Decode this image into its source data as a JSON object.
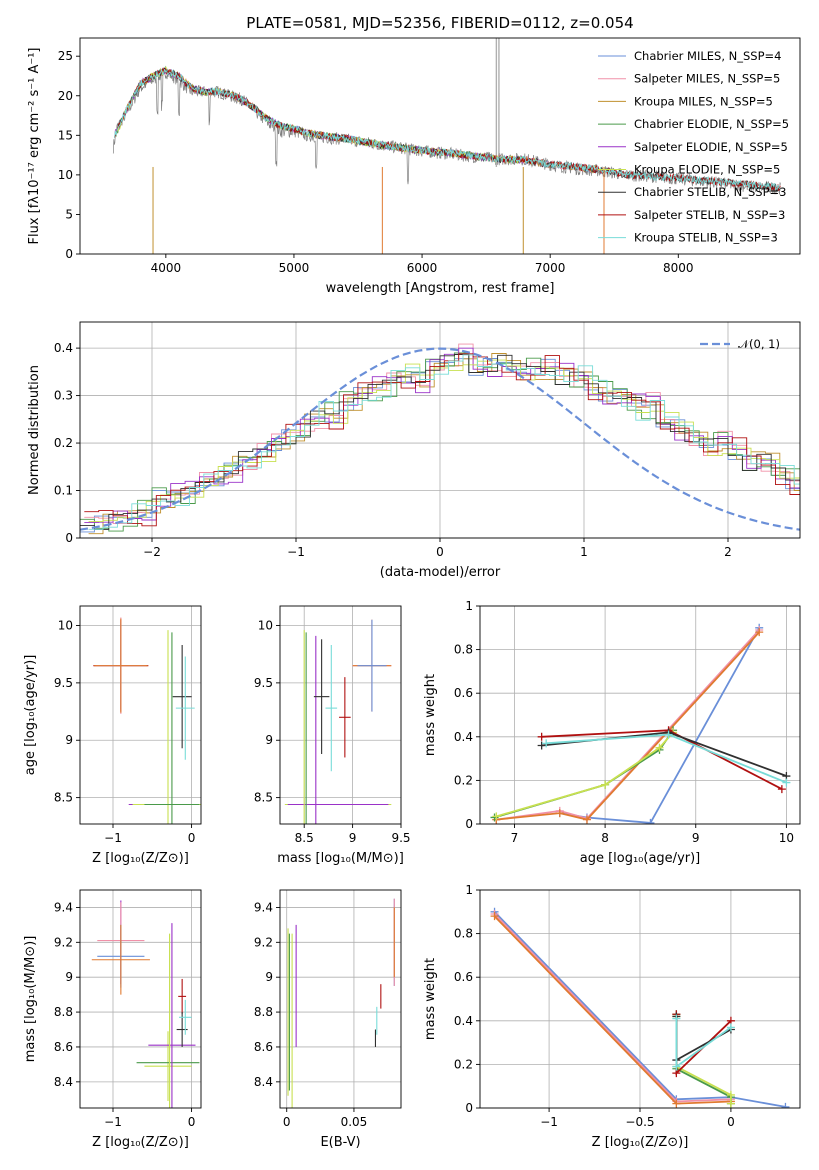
{
  "chart_data": [
    {
      "id": "spectrum",
      "type": "line",
      "title": "PLATE=0581, MJD=52356, FIBERID=0112, z=0.054",
      "xlabel": "wavelength [Angstrom, rest frame]",
      "ylabel": "Flux [fλ10⁻¹⁷ erg cm⁻² s⁻¹ A⁻¹]",
      "xlim": [
        3330,
        8950
      ],
      "ylim": [
        0,
        27.3
      ],
      "xticks": [
        4000,
        5000,
        6000,
        7000,
        8000
      ],
      "yticks": [
        0,
        5,
        10,
        15,
        20,
        25
      ],
      "grid": false,
      "legend_position": "top-right",
      "observed": {
        "color": "#808080",
        "x": [
          3590,
          3620,
          3700,
          3800,
          3900,
          4000,
          4100,
          4200,
          4300,
          4400,
          4500,
          4600,
          4700,
          4800,
          4900,
          5000,
          5100,
          5200,
          5400,
          5600,
          5800,
          6000,
          6200,
          6400,
          6600,
          6800,
          7000,
          7200,
          7400,
          7600,
          7800,
          8000,
          8200,
          8400,
          8600,
          8800
        ],
        "y": [
          13.5,
          16,
          18,
          21,
          22,
          23,
          22,
          20.5,
          20.5,
          20.5,
          20,
          19.5,
          18,
          16.5,
          15.5,
          15.5,
          15,
          14.8,
          14.5,
          14,
          13.5,
          13,
          12.7,
          12.3,
          12,
          12,
          11.3,
          10.8,
          10.5,
          10,
          9.8,
          9.5,
          9.2,
          8.8,
          8.5,
          8.3
        ]
      },
      "model_fit": {
        "x": [
          3590,
          3620,
          3700,
          3800,
          3900,
          4000,
          4100,
          4200,
          4300,
          4400,
          4500,
          4600,
          4700,
          4800,
          4900,
          5000,
          5100,
          5200,
          5400,
          5600,
          5800,
          6000,
          6200,
          6400,
          6600,
          6800,
          7000,
          7200,
          7400
        ],
        "y": [
          15,
          15.5,
          18.5,
          21.5,
          22.5,
          23.2,
          22.5,
          21,
          20.5,
          20.5,
          20.2,
          19.5,
          18.3,
          17,
          16.2,
          15.8,
          15.3,
          15,
          14.6,
          14,
          13.5,
          13.1,
          12.8,
          12.4,
          12,
          11.9,
          11.3,
          11,
          10.6
        ]
      },
      "series": [
        {
          "name": "Chabrier MILES, N_SSP=4",
          "color": "#6a8fd8",
          "xmax": 7400
        },
        {
          "name": "Salpeter MILES, N_SSP=5",
          "color": "#f090a8",
          "xmax": 7400
        },
        {
          "name": "Kroupa MILES, N_SSP=5",
          "color": "#c0902e",
          "xmax": 7400
        },
        {
          "name": "Chabrier ELODIE, N_SSP=5",
          "color": "#4a9a4a",
          "xmax": 6800
        },
        {
          "name": "Salpeter ELODIE, N_SSP=5",
          "color": "#9a32c8",
          "xmax": 6800
        },
        {
          "name": "Kroupa ELODIE, N_SSP=5",
          "color": "#c8e050",
          "xmax": 6800
        },
        {
          "name": "Chabrier STELIB, N_SSP=3",
          "color": "#303030",
          "xmax": 8800
        },
        {
          "name": "Salpeter STELIB, N_SSP=3",
          "color": "#b01010",
          "xmax": 8800
        },
        {
          "name": "Kroupa STELIB, N_SSP=3",
          "color": "#78dcd8",
          "xmax": 8800
        }
      ]
    },
    {
      "id": "residuals",
      "type": "step",
      "xlabel": "(data-model)/error",
      "ylabel": "Normed distribution",
      "xlim": [
        -2.5,
        2.5
      ],
      "ylim": [
        0,
        0.455
      ],
      "xticks": [
        -2,
        -1,
        0,
        1,
        2
      ],
      "yticks": [
        0.0,
        0.1,
        0.2,
        0.3,
        0.4
      ],
      "grid": true,
      "legend_position": "top-right",
      "reference": {
        "name": "𝒩(0, 1)",
        "color": "#6a8fd8",
        "mean": 0,
        "sigma": 1
      },
      "bin_edges_start": -2.5,
      "bin_width": 0.1,
      "histogram_base": [
        0.035,
        0.04,
        0.045,
        0.05,
        0.06,
        0.1,
        0.1,
        0.1,
        0.13,
        0.13,
        0.15,
        0.16,
        0.17,
        0.19,
        0.2,
        0.22,
        0.24,
        0.22,
        0.26,
        0.28,
        0.28,
        0.3,
        0.31,
        0.29,
        0.34,
        0.35,
        0.38,
        0.34,
        0.36,
        0.37,
        0.36,
        0.38,
        0.4,
        0.39,
        0.4,
        0.38,
        0.37,
        0.38,
        0.36,
        0.38,
        0.33,
        0.32,
        0.3,
        0.27,
        0.3,
        0.27,
        0.24,
        0.25,
        0.21,
        0.18,
        0.19,
        0.17,
        0.15,
        0.13,
        0.13,
        0.11,
        0.1,
        0.09,
        0.09,
        0.08,
        0.07,
        0.06,
        0.06,
        0.05,
        0.05,
        0.04,
        0.045,
        0.04,
        0.03,
        0.04,
        0.03,
        0.045,
        0.04,
        0.035,
        0.03,
        0.03,
        0.025,
        0.03,
        0.03,
        0.025,
        0.02,
        0.02,
        0.015,
        0.015,
        0.01
      ],
      "offsets": [
        0.0,
        0.012,
        -0.01,
        0.018,
        -0.015,
        0.008,
        -0.006,
        0.015,
        -0.012
      ]
    },
    {
      "id": "age-vs-Z",
      "type": "errorbar",
      "xlabel": "Z [log₁₀(Z/Z⊙)]",
      "ylabel": "age  [log₁₀(age/yr)]",
      "xlim": [
        -1.42,
        0.12
      ],
      "ylim": [
        8.27,
        10.17
      ],
      "xticks": [
        -1,
        0
      ],
      "yticks": [
        8.5,
        9.0,
        9.5,
        10.0
      ],
      "grid": true,
      "points": [
        {
          "color": "#b01010",
          "x": -0.9,
          "y": 9.65,
          "xerr": 0.35,
          "yerr": 0.4
        },
        {
          "color": "#6a8fd8",
          "x": -0.9,
          "y": 9.65,
          "xerr": 0.3,
          "yerr": 0.38
        },
        {
          "color": "#f090a8",
          "x": -0.9,
          "y": 9.65,
          "xerr": 0.32,
          "yerr": 0.42
        },
        {
          "color": "#e07a30",
          "x": -0.9,
          "y": 9.65,
          "xerr": 0.34,
          "yerr": 0.41
        },
        {
          "color": "#9a32c8",
          "x": -0.3,
          "y": 8.44,
          "xerr": 0.5,
          "yerr": 0.0
        },
        {
          "color": "#c8e050",
          "x": -0.3,
          "y": 8.44,
          "xerr": 0.45,
          "yerr": 1.52
        },
        {
          "color": "#4a9a4a",
          "x": -0.25,
          "y": 8.44,
          "xerr": 0.35,
          "yerr": 1.5
        },
        {
          "color": "#303030",
          "x": -0.12,
          "y": 9.38,
          "xerr": 0.12,
          "yerr": 0.45
        },
        {
          "color": "#78dcd8",
          "x": -0.08,
          "y": 9.28,
          "xerr": 0.12,
          "yerr": 0.45
        }
      ]
    },
    {
      "id": "age-vs-mass",
      "type": "errorbar",
      "xlabel": "mass [log₁₀(M/M⊙)]",
      "ylabel": "",
      "xlim": [
        8.25,
        9.5
      ],
      "ylim": [
        8.27,
        10.17
      ],
      "xticks": [
        8.5,
        9.0,
        9.5
      ],
      "yticks": [
        8.5,
        9.0,
        9.5,
        10.0
      ],
      "grid": true,
      "points": [
        {
          "color": "#c8e050",
          "x": 8.85,
          "y": 8.44,
          "xerr": 0.55,
          "yerr": 0
        },
        {
          "color": "#9a32c8",
          "x": 8.85,
          "y": 8.44,
          "xerr": 0.52,
          "yerr": 0
        },
        {
          "color": "#4a9a4a",
          "x": 8.52,
          "y": 8.44,
          "xerr": 0,
          "yerr": 1.5
        },
        {
          "color": "#c8e050",
          "x": 8.5,
          "y": 8.44,
          "xerr": 0,
          "yerr": 1.52
        },
        {
          "color": "#9a32c8",
          "x": 8.62,
          "y": 8.44,
          "xerr": 0,
          "yerr": 1.47
        },
        {
          "color": "#303030",
          "x": 8.68,
          "y": 9.38,
          "xerr": 0.08,
          "yerr": 0.5
        },
        {
          "color": "#78dcd8",
          "x": 8.78,
          "y": 9.28,
          "xerr": 0.06,
          "yerr": 0.55
        },
        {
          "color": "#b01010",
          "x": 8.92,
          "y": 9.2,
          "xerr": 0.06,
          "yerr": 0.35
        },
        {
          "color": "#f090a8",
          "x": 9.2,
          "y": 9.65,
          "xerr": 0.2,
          "yerr": 0.4
        },
        {
          "color": "#e07a30",
          "x": 9.2,
          "y": 9.65,
          "xerr": 0.2,
          "yerr": 0.4
        },
        {
          "color": "#6a8fd8",
          "x": 9.2,
          "y": 9.65,
          "xerr": 0.15,
          "yerr": 0.4
        }
      ]
    },
    {
      "id": "weight-vs-age",
      "type": "line",
      "xlabel": "age  [log₁₀(age/yr)]",
      "ylabel": "mass weight",
      "xlim": [
        6.62,
        10.15
      ],
      "ylim": [
        0,
        1.0
      ],
      "xticks": [
        7,
        8,
        9,
        10
      ],
      "yticks": [
        0.0,
        0.2,
        0.4,
        0.6,
        0.8,
        1.0
      ],
      "grid": true,
      "series": [
        {
          "color": "#6a8fd8",
          "x": [
            7.5,
            7.8,
            8.5,
            9.7
          ],
          "y": [
            0.05,
            0.03,
            0.005,
            0.9
          ]
        },
        {
          "color": "#f090a8",
          "x": [
            6.8,
            7.5,
            7.8,
            9.7
          ],
          "y": [
            0.02,
            0.06,
            0.025,
            0.89
          ]
        },
        {
          "color": "#e07a30",
          "x": [
            6.8,
            7.5,
            7.8,
            9.7
          ],
          "y": [
            0.02,
            0.05,
            0.02,
            0.88
          ]
        },
        {
          "color": "#4a9a4a",
          "x": [
            6.78,
            8.0,
            8.6,
            8.75
          ],
          "y": [
            0.03,
            0.18,
            0.34,
            0.43
          ]
        },
        {
          "color": "#c8e050",
          "x": [
            6.8,
            8.0,
            8.6,
            8.75
          ],
          "y": [
            0.035,
            0.18,
            0.35,
            0.42
          ]
        },
        {
          "color": "#b01010",
          "x": [
            7.3,
            8.7,
            9.95
          ],
          "y": [
            0.4,
            0.43,
            0.16
          ]
        },
        {
          "color": "#303030",
          "x": [
            7.3,
            8.7,
            10.0
          ],
          "y": [
            0.36,
            0.42,
            0.22
          ]
        },
        {
          "color": "#78dcd8",
          "x": [
            7.35,
            8.7,
            10.0
          ],
          "y": [
            0.37,
            0.41,
            0.19
          ]
        }
      ]
    },
    {
      "id": "mass-vs-Z",
      "type": "errorbar",
      "xlabel": "Z [log₁₀(Z/Z⊙)]",
      "ylabel": "mass [log₁₀(M/M⊙)]",
      "xlim": [
        -1.42,
        0.12
      ],
      "ylim": [
        8.25,
        9.5
      ],
      "xticks": [
        -1,
        0
      ],
      "yticks": [
        8.4,
        8.6,
        8.8,
        9.0,
        9.2,
        9.4
      ],
      "grid": true,
      "points": [
        {
          "color": "#9a32c8",
          "x": -0.9,
          "y": 9.2,
          "xerr": 0.0,
          "yerr": 0.24
        },
        {
          "color": "#f090a8",
          "x": -0.9,
          "y": 9.21,
          "xerr": 0.3,
          "yerr": 0.22
        },
        {
          "color": "#6a8fd8",
          "x": -0.9,
          "y": 9.12,
          "xerr": 0.3,
          "yerr": 0.18
        },
        {
          "color": "#e07a30",
          "x": -0.9,
          "y": 9.1,
          "xerr": 0.37,
          "yerr": 0.2
        },
        {
          "color": "#c8e050",
          "x": -0.3,
          "y": 8.49,
          "xerr": 0.3,
          "yerr": 0.2
        },
        {
          "color": "#4a9a4a",
          "x": -0.3,
          "y": 8.51,
          "xerr": 0.4,
          "yerr": 0.0
        },
        {
          "color": "#9a32c8",
          "x": -0.25,
          "y": 8.61,
          "xerr": 0.3,
          "yerr": 0.7
        },
        {
          "color": "#c8e050",
          "x": -0.28,
          "y": 8.7,
          "xerr": 0.0,
          "yerr": 0.55
        },
        {
          "color": "#b01010",
          "x": -0.12,
          "y": 8.89,
          "xerr": 0.05,
          "yerr": 0.1
        },
        {
          "color": "#303030",
          "x": -0.12,
          "y": 8.7,
          "xerr": 0.07,
          "yerr": 0.1
        },
        {
          "color": "#78dcd8",
          "x": -0.08,
          "y": 8.77,
          "xerr": 0.08,
          "yerr": 0.1
        }
      ]
    },
    {
      "id": "mass-vs-EBV",
      "type": "errorbar",
      "xlabel": "E(B-V)",
      "ylabel": "",
      "xlim": [
        -0.005,
        0.085
      ],
      "ylim": [
        8.25,
        9.5
      ],
      "xticks": [
        0.0,
        0.05
      ],
      "yticks": [
        8.4,
        8.6,
        8.8,
        9.0,
        9.2,
        9.4
      ],
      "grid": true,
      "points": [
        {
          "color": "#c8e050",
          "x": 0.001,
          "y": 8.8,
          "xerr": 0,
          "yerr": 0.48
        },
        {
          "color": "#4a9a4a",
          "x": 0.002,
          "y": 8.8,
          "xerr": 0,
          "yerr": 0.45
        },
        {
          "color": "#c8e050",
          "x": 0.004,
          "y": 8.75,
          "xerr": 0,
          "yerr": 0.5
        },
        {
          "color": "#9a32c8",
          "x": 0.007,
          "y": 8.95,
          "xerr": 0,
          "yerr": 0.35
        },
        {
          "color": "#78dcd8",
          "x": 0.067,
          "y": 8.75,
          "xerr": 0,
          "yerr": 0.08
        },
        {
          "color": "#303030",
          "x": 0.066,
          "y": 8.65,
          "xerr": 0,
          "yerr": 0.05
        },
        {
          "color": "#b01010",
          "x": 0.07,
          "y": 8.89,
          "xerr": 0,
          "yerr": 0.07
        },
        {
          "color": "#6a8fd8",
          "x": 0.08,
          "y": 9.2,
          "xerr": 0,
          "yerr": 0.25
        },
        {
          "color": "#f090a8",
          "x": 0.08,
          "y": 9.2,
          "xerr": 0,
          "yerr": 0.25
        },
        {
          "color": "#e07a30",
          "x": 0.08,
          "y": 9.2,
          "xerr": 0,
          "yerr": 0.2
        }
      ]
    },
    {
      "id": "weight-vs-Z",
      "type": "line",
      "xlabel": "Z [log₁₀(Z/Z⊙)]",
      "ylabel": "mass weight",
      "xlim": [
        -1.38,
        0.38
      ],
      "ylim": [
        0,
        1.0
      ],
      "xticks": [
        -1.0,
        -0.5,
        0.0
      ],
      "yticks": [
        0.0,
        0.2,
        0.4,
        0.6,
        0.8,
        1.0
      ],
      "grid": true,
      "series": [
        {
          "color": "#6a8fd8",
          "x": [
            -1.3,
            -0.3,
            0.0,
            0.3
          ],
          "y": [
            0.9,
            0.04,
            0.05,
            0.005
          ]
        },
        {
          "color": "#f090a8",
          "x": [
            -1.3,
            -0.3,
            0.0
          ],
          "y": [
            0.89,
            0.03,
            0.04
          ]
        },
        {
          "color": "#e07a30",
          "x": [
            -1.3,
            -0.3,
            0.0
          ],
          "y": [
            0.88,
            0.02,
            0.03
          ]
        },
        {
          "color": "#4a9a4a",
          "x": [
            -0.3,
            -0.3,
            0.0,
            0.0
          ],
          "y": [
            0.43,
            0.18,
            0.05,
            0.02
          ]
        },
        {
          "color": "#c8e050",
          "x": [
            -0.3,
            -0.3,
            0.0,
            0.0
          ],
          "y": [
            0.42,
            0.19,
            0.06,
            0.02
          ]
        },
        {
          "color": "#b01010",
          "x": [
            -0.3,
            -0.3,
            0.0
          ],
          "y": [
            0.43,
            0.16,
            0.4
          ]
        },
        {
          "color": "#303030",
          "x": [
            -0.3,
            -0.3,
            0.0
          ],
          "y": [
            0.42,
            0.22,
            0.36
          ]
        },
        {
          "color": "#78dcd8",
          "x": [
            -0.3,
            -0.3,
            0.0
          ],
          "y": [
            0.41,
            0.19,
            0.37
          ]
        }
      ]
    }
  ]
}
